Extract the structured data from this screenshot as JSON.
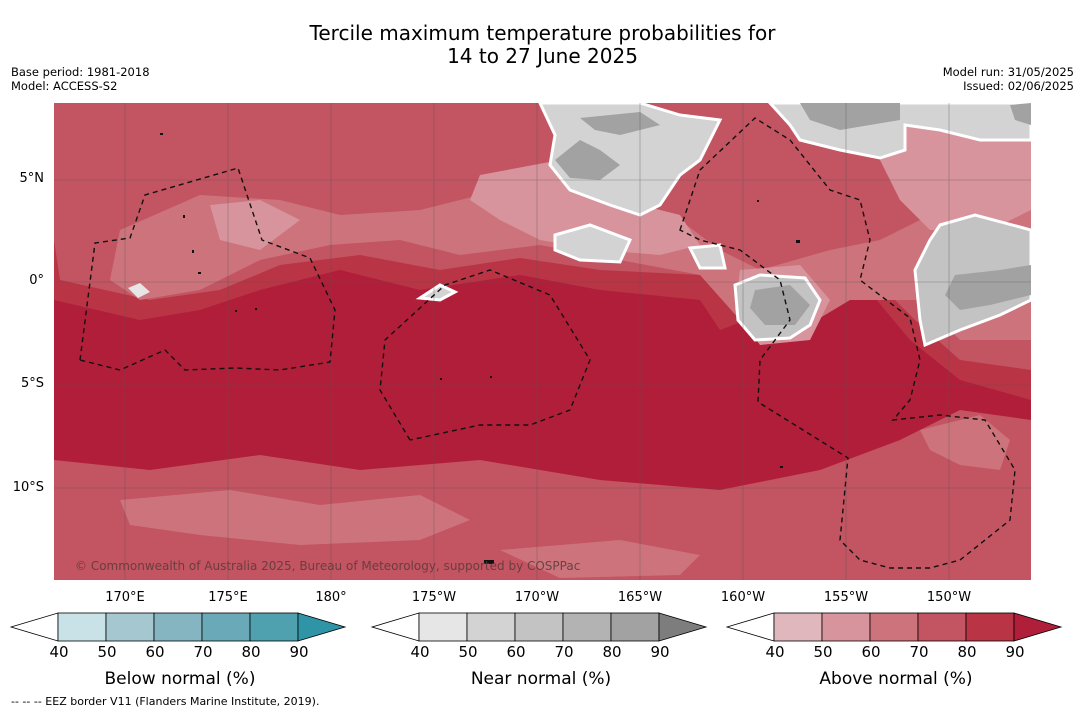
{
  "title_line1": "Tercile maximum temperature probabilities for",
  "title_line2": "14 to 27 June 2025",
  "base_period": "Base period: 1981-2018",
  "model": "Model: ACCESS-S2",
  "model_run": "Model run: 31/05/2025",
  "issued": "Issued: 02/06/2025",
  "lat_labels": [
    "5°N",
    "0°",
    "5°S",
    "10°S"
  ],
  "lon_labels": [
    "170°E",
    "175°E",
    "180°",
    "175°W",
    "170°W",
    "165°W",
    "160°W",
    "155°W",
    "150°W"
  ],
  "copyright": "© Commonwealth of Australia 2025, Bureau of Meteorology, supported by COSPPac",
  "colorbars": [
    {
      "name": "Below normal (%)",
      "ticks": [
        "40",
        "50",
        "60",
        "70",
        "80",
        "90"
      ],
      "colors": [
        "#ffffff",
        "#c8e2e8",
        "#a5c7cf",
        "#86b5c2",
        "#6aaab8",
        "#4fa1b0",
        "#2f95a6"
      ]
    },
    {
      "name": "Near normal (%)",
      "ticks": [
        "40",
        "50",
        "60",
        "70",
        "80",
        "90"
      ],
      "colors": [
        "#ffffff",
        "#e6e6e6",
        "#d3d3d3",
        "#c3c3c3",
        "#b3b3b3",
        "#a2a2a2",
        "#7d7d7d"
      ]
    },
    {
      "name": "Above normal (%)",
      "ticks": [
        "40",
        "50",
        "60",
        "70",
        "80",
        "90"
      ],
      "colors": [
        "#ffffff",
        "#e0b7bd",
        "#d8949c",
        "#cd737c",
        "#c35461",
        "#b93445",
        "#b11e3a"
      ]
    }
  ],
  "footnote": "--  --  -- EEZ border V11 (Flanders Marine Institute, 2019)."
}
